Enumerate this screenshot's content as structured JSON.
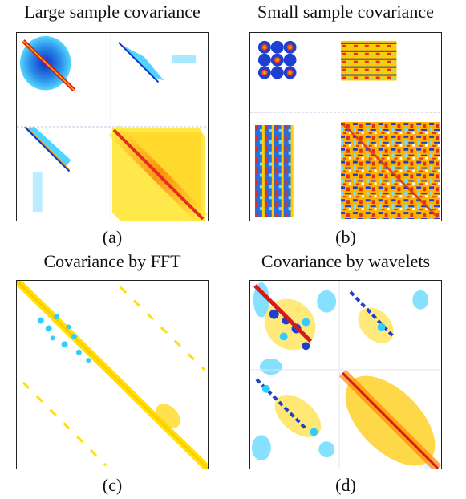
{
  "panels": {
    "a": {
      "title": "Large sample covariance",
      "caption": "(a)"
    },
    "b": {
      "title": "Small sample covariance",
      "caption": "(b)"
    },
    "c": {
      "title": "Covariance by FFT",
      "caption": "(c)"
    },
    "d": {
      "title": "Covariance by wavelets",
      "caption": "(d)"
    }
  },
  "colors": {
    "positive_low": "#ffe600",
    "positive_mid": "#ff9a00",
    "positive_high": "#d7191c",
    "negative_low": "#33ccff",
    "negative_high": "#1030c8",
    "background": "#ffffff"
  }
}
